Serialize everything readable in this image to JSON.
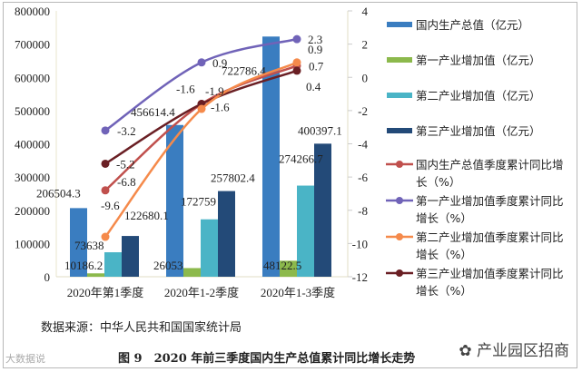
{
  "chart_data": {
    "type": "bar+line",
    "categories": [
      "2020年第1季度",
      "2020年1-2季度",
      "2020年1-3季度"
    ],
    "left_axis": {
      "ylim": [
        0,
        800000
      ],
      "ticks": [
        "0",
        "100000",
        "200000",
        "300000",
        "400000",
        "500000",
        "600000",
        "700000",
        "800000"
      ]
    },
    "right_axis": {
      "ylim": [
        -12,
        4
      ],
      "ticks": [
        "-12",
        "-10",
        "-8",
        "-6",
        "-4",
        "-2",
        "0",
        "2",
        "4"
      ]
    },
    "bar_series": [
      {
        "name": "国内生产总值（亿元）",
        "values": [
          206504.3,
          456614.4,
          722786.4
        ],
        "labels": [
          "206504.3",
          "456614.4",
          "722786.4"
        ],
        "color": "#3a7dc0"
      },
      {
        "name": "第一产业增加值（亿元）",
        "values": [
          10186.2,
          26053,
          48122.5
        ],
        "labels": [
          "10186.2",
          "26053",
          "48122.5"
        ],
        "color": "#8cb94c"
      },
      {
        "name": "第二产业增加值（亿元）",
        "values": [
          73638,
          172759,
          274266.7
        ],
        "labels": [
          "73638",
          "172759",
          "274266.7"
        ],
        "color": "#4ab4c6"
      },
      {
        "name": "第三产业增加值（亿元）",
        "values": [
          122680.1,
          257802.4,
          400397.1
        ],
        "labels": [
          "122680.1",
          "257802.4",
          "400397.1"
        ],
        "color": "#234a78"
      }
    ],
    "line_series": [
      {
        "name_line1": "国内生产总值季度累计同比增",
        "name_line2": "长（%）",
        "values": [
          -6.8,
          -1.6,
          0.7
        ],
        "labels": [
          "-6.8",
          "-1.6",
          "0.7"
        ],
        "color": "#c0504d"
      },
      {
        "name_line1": "第一产业增加值季度累计同比",
        "name_line2": "增长（%）",
        "values": [
          -3.2,
          0.9,
          2.3
        ],
        "labels": [
          "-3.2",
          "0.9",
          "2.3"
        ],
        "color": "#7063b8"
      },
      {
        "name_line1": "第二产业增加值季度累计同比",
        "name_line2": "增长（%）",
        "values": [
          -9.6,
          -1.9,
          0.9
        ],
        "labels": [
          "-9.6",
          "-1.9",
          "0.9"
        ],
        "color": "#f58a4b"
      },
      {
        "name_line1": "第三产业增加值季度累计同比",
        "name_line2": "增长（%）",
        "values": [
          -5.2,
          -1.6,
          0.4
        ],
        "labels": [
          "-5.2",
          "-1.6",
          "0.4"
        ],
        "color": "#6a1f24"
      }
    ],
    "legend": "right"
  },
  "source": "数据来源：中华人民共和国国家统计局",
  "caption": "图 9　2020 年前三季度国内生产总值累计同比增长走势",
  "watermark": "产业园区招商",
  "watermark_left": "大数据说"
}
